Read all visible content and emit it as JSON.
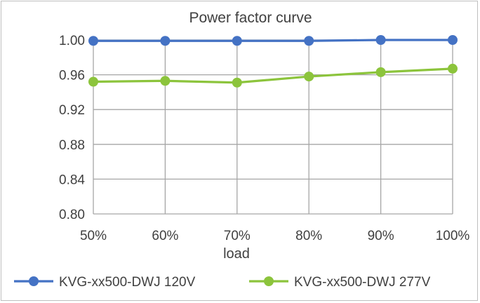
{
  "chart_data": {
    "type": "line",
    "title": "Power factor curve",
    "xlabel": "load",
    "ylabel": "",
    "categories": [
      "50%",
      "60%",
      "70%",
      "80%",
      "90%",
      "100%"
    ],
    "ylim": [
      0.8,
      1.0
    ],
    "yticks": [
      "0.80",
      "0.84",
      "0.88",
      "0.92",
      "0.96",
      "1.00"
    ],
    "ytick_values": [
      0.8,
      0.84,
      0.88,
      0.92,
      0.96,
      1.0
    ],
    "grid": true,
    "legend": "bottom",
    "series": [
      {
        "name": "KVG-xx500-DWJ 120V",
        "color": "#4472c4",
        "values": [
          0.999,
          0.999,
          0.999,
          0.999,
          1.0,
          1.0
        ]
      },
      {
        "name": "KVG-xx500-DWJ 277V",
        "color": "#8cc43c",
        "values": [
          0.952,
          0.953,
          0.951,
          0.958,
          0.963,
          0.967
        ]
      }
    ]
  }
}
